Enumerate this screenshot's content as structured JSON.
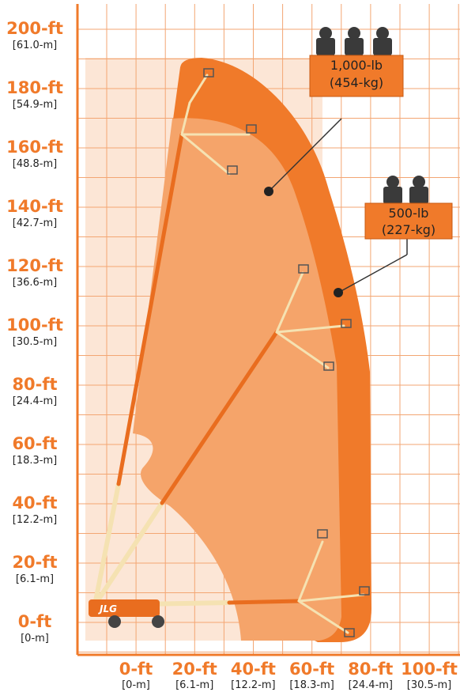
{
  "y_axis": {
    "labels": [
      {
        "ft": "200-ft",
        "m": "[61.0-m]"
      },
      {
        "ft": "180-ft",
        "m": "[54.9-m]"
      },
      {
        "ft": "160-ft",
        "m": "[48.8-m]"
      },
      {
        "ft": "140-ft",
        "m": "[42.7-m]"
      },
      {
        "ft": "120-ft",
        "m": "[36.6-m]"
      },
      {
        "ft": "100-ft",
        "m": "[30.5-m]"
      },
      {
        "ft": "80-ft",
        "m": "[24.4-m]"
      },
      {
        "ft": "60-ft",
        "m": "[18.3-m]"
      },
      {
        "ft": "40-ft",
        "m": "[12.2-m]"
      },
      {
        "ft": "20-ft",
        "m": "[6.1-m]"
      },
      {
        "ft": "0-ft",
        "m": "[0-m]"
      }
    ]
  },
  "x_axis": {
    "labels": [
      {
        "ft": "0-ft",
        "m": "[0-m]"
      },
      {
        "ft": "20-ft",
        "m": "[6.1-m]"
      },
      {
        "ft": "40-ft",
        "m": "[12.2-m]"
      },
      {
        "ft": "60-ft",
        "m": "[18.3-m]"
      },
      {
        "ft": "80-ft",
        "m": "[24.4-m]"
      },
      {
        "ft": "100-ft",
        "m": "[30.5-m]"
      }
    ]
  },
  "callouts": [
    {
      "capacity": "1,000-lb",
      "metric": "(454-kg)"
    },
    {
      "capacity": "500-lb",
      "metric": "(227-kg)"
    }
  ],
  "brand": "JLG"
}
